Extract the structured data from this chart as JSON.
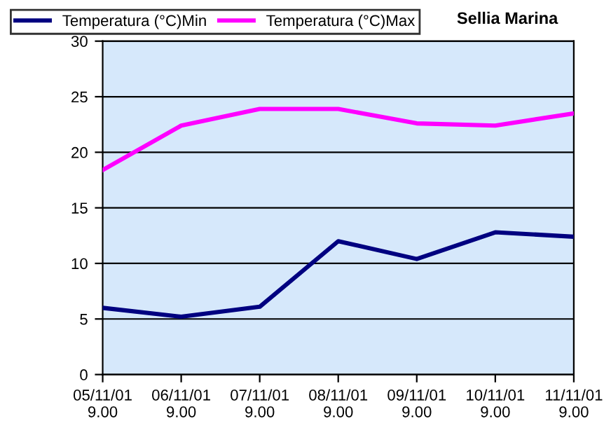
{
  "chart_data": {
    "type": "line",
    "title": "Sellia Marina",
    "categories": [
      "05/11/01\n9.00",
      "06/11/01\n9.00",
      "07/11/01\n9.00",
      "08/11/01\n9.00",
      "09/11/01\n9.00",
      "10/11/01\n9.00",
      "11/11/01\n9.00"
    ],
    "series": [
      {
        "name": "Temperatura (°C)Min",
        "color": "#000080",
        "values": [
          6.0,
          5.2,
          6.1,
          12.0,
          10.4,
          12.8,
          12.4
        ]
      },
      {
        "name": "Temperatura (°C)Max",
        "color": "#ff00ff",
        "values": [
          18.4,
          22.4,
          23.9,
          23.9,
          22.6,
          22.4,
          23.5
        ]
      }
    ],
    "ylim": [
      0,
      30
    ],
    "yticks": [
      0,
      5,
      10,
      15,
      20,
      25,
      30
    ],
    "grid": "y",
    "legend": "top left",
    "marker": "none",
    "line_style": "solid"
  }
}
